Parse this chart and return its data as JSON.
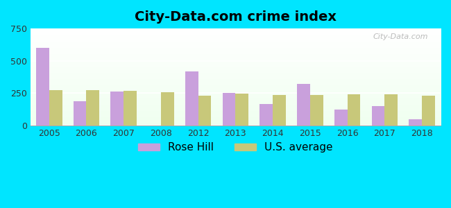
{
  "title": "City-Data.com crime index",
  "years": [
    2005,
    2006,
    2007,
    2008,
    2012,
    2013,
    2014,
    2015,
    2016,
    2017,
    2018
  ],
  "rose_hill": [
    600,
    185,
    260,
    0,
    420,
    250,
    165,
    320,
    125,
    150,
    45
  ],
  "us_average": [
    275,
    275,
    270,
    258,
    230,
    248,
    238,
    238,
    242,
    240,
    228
  ],
  "rose_hill_color": "#c9a0dc",
  "us_avg_color": "#c8c87a",
  "ylim": [
    0,
    750
  ],
  "yticks": [
    0,
    250,
    500,
    750
  ],
  "outer_bg": "#00e5ff",
  "bar_width": 0.35,
  "title_fontsize": 14,
  "legend_fontsize": 11,
  "watermark": "City-Data.com"
}
